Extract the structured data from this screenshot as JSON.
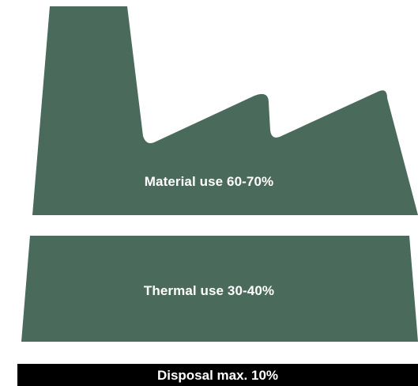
{
  "colors": {
    "factory_green": "#4a6a5c",
    "disposal_black": "#000000",
    "label_text": "#ffffff",
    "background": "#ffffff"
  },
  "tiers": {
    "material": {
      "label": "Material use 60-70%"
    },
    "thermal": {
      "label": "Thermal use 30-40%"
    },
    "disposal": {
      "label": "Disposal max. 10%"
    }
  }
}
